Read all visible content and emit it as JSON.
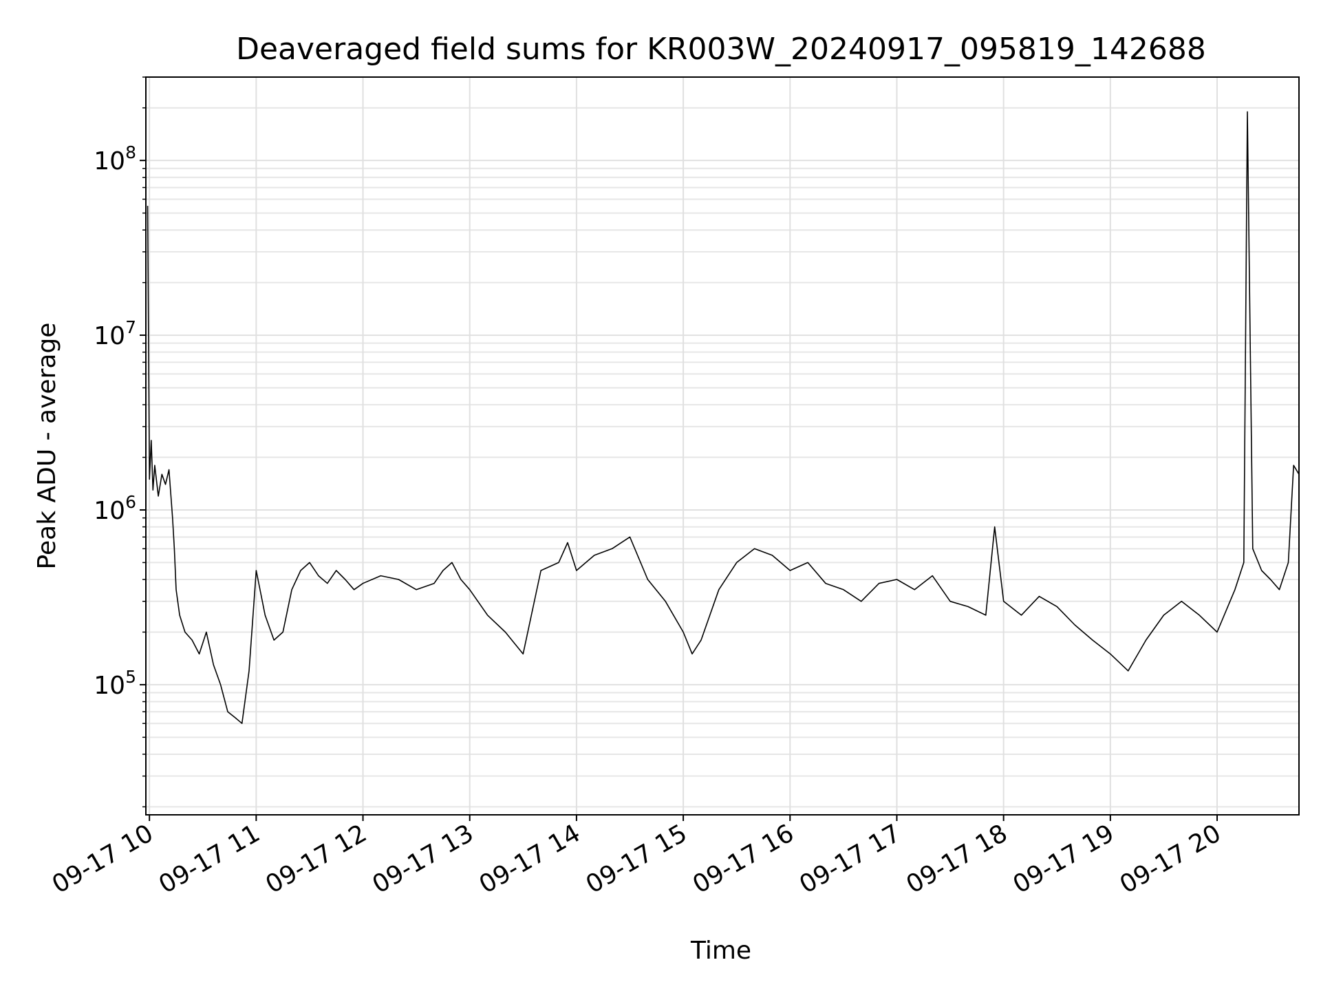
{
  "chart_data": {
    "type": "line",
    "title": "Deaveraged field sums for KR003W_20240917_095819_142688",
    "xlabel": "Time",
    "ylabel": "Peak ADU - average",
    "yscale": "log",
    "xlim": [
      "2024-09-17 09:58",
      "2024-09-17 20:46"
    ],
    "ylim": [
      18000,
      300000000
    ],
    "grid": true,
    "grid_minor": true,
    "line_color": "#000000",
    "x_ticks": [
      "09-17 10",
      "09-17 11",
      "09-17 12",
      "09-17 13",
      "09-17 14",
      "09-17 15",
      "09-17 16",
      "09-17 17",
      "09-17 18",
      "09-17 19",
      "09-17 20"
    ],
    "y_ticks": [
      {
        "value": 100000,
        "base": "10",
        "exp": "5"
      },
      {
        "value": 1000000,
        "base": "10",
        "exp": "6"
      },
      {
        "value": 10000000,
        "base": "10",
        "exp": "7"
      },
      {
        "value": 100000000,
        "base": "10",
        "exp": "8"
      }
    ],
    "series": [
      {
        "x": [
          "2024-09-17 09:59",
          "2024-09-17 10:00",
          "2024-09-17 10:01",
          "2024-09-17 10:02",
          "2024-09-17 10:03",
          "2024-09-17 10:05",
          "2024-09-17 10:07",
          "2024-09-17 10:09",
          "2024-09-17 10:11",
          "2024-09-17 10:13",
          "2024-09-17 10:14",
          "2024-09-17 10:15",
          "2024-09-17 10:17",
          "2024-09-17 10:20",
          "2024-09-17 10:24",
          "2024-09-17 10:28",
          "2024-09-17 10:32",
          "2024-09-17 10:36",
          "2024-09-17 10:40",
          "2024-09-17 10:44",
          "2024-09-17 10:48",
          "2024-09-17 10:52",
          "2024-09-17 10:56",
          "2024-09-17 11:00",
          "2024-09-17 11:05",
          "2024-09-17 11:10",
          "2024-09-17 11:15",
          "2024-09-17 11:20",
          "2024-09-17 11:25",
          "2024-09-17 11:30",
          "2024-09-17 11:35",
          "2024-09-17 11:40",
          "2024-09-17 11:45",
          "2024-09-17 11:50",
          "2024-09-17 11:55",
          "2024-09-17 12:00",
          "2024-09-17 12:10",
          "2024-09-17 12:20",
          "2024-09-17 12:30",
          "2024-09-17 12:40",
          "2024-09-17 12:45",
          "2024-09-17 12:50",
          "2024-09-17 12:55",
          "2024-09-17 13:00",
          "2024-09-17 13:10",
          "2024-09-17 13:20",
          "2024-09-17 13:30",
          "2024-09-17 13:40",
          "2024-09-17 13:50",
          "2024-09-17 13:55",
          "2024-09-17 14:00",
          "2024-09-17 14:10",
          "2024-09-17 14:20",
          "2024-09-17 14:30",
          "2024-09-17 14:40",
          "2024-09-17 14:50",
          "2024-09-17 15:00",
          "2024-09-17 15:05",
          "2024-09-17 15:10",
          "2024-09-17 15:20",
          "2024-09-17 15:30",
          "2024-09-17 15:40",
          "2024-09-17 15:50",
          "2024-09-17 16:00",
          "2024-09-17 16:10",
          "2024-09-17 16:20",
          "2024-09-17 16:30",
          "2024-09-17 16:40",
          "2024-09-17 16:50",
          "2024-09-17 17:00",
          "2024-09-17 17:10",
          "2024-09-17 17:20",
          "2024-09-17 17:30",
          "2024-09-17 17:40",
          "2024-09-17 17:50",
          "2024-09-17 17:55",
          "2024-09-17 18:00",
          "2024-09-17 18:10",
          "2024-09-17 18:20",
          "2024-09-17 18:30",
          "2024-09-17 18:40",
          "2024-09-17 18:50",
          "2024-09-17 19:00",
          "2024-09-17 19:10",
          "2024-09-17 19:20",
          "2024-09-17 19:30",
          "2024-09-17 19:40",
          "2024-09-17 19:50",
          "2024-09-17 20:00",
          "2024-09-17 20:10",
          "2024-09-17 20:15",
          "2024-09-17 20:17",
          "2024-09-17 20:20",
          "2024-09-17 20:25",
          "2024-09-17 20:30",
          "2024-09-17 20:35",
          "2024-09-17 20:40",
          "2024-09-17 20:43",
          "2024-09-17 20:46"
        ],
        "y": [
          55000000,
          1500000,
          2500000,
          1300000,
          1800000,
          1200000,
          1600000,
          1400000,
          1700000,
          900000,
          600000,
          350000,
          250000,
          200000,
          180000,
          150000,
          200000,
          130000,
          100000,
          70000,
          65000,
          60000,
          120000,
          450000,
          250000,
          180000,
          200000,
          350000,
          450000,
          500000,
          420000,
          380000,
          450000,
          400000,
          350000,
          380000,
          420000,
          400000,
          350000,
          380000,
          450000,
          500000,
          400000,
          350000,
          250000,
          200000,
          150000,
          450000,
          500000,
          650000,
          450000,
          550000,
          600000,
          700000,
          400000,
          300000,
          200000,
          150000,
          180000,
          350000,
          500000,
          600000,
          550000,
          450000,
          500000,
          380000,
          350000,
          300000,
          380000,
          400000,
          350000,
          420000,
          300000,
          280000,
          250000,
          800000,
          300000,
          250000,
          320000,
          280000,
          220000,
          180000,
          150000,
          120000,
          180000,
          250000,
          300000,
          250000,
          200000,
          350000,
          500000,
          190000000,
          600000,
          450000,
          400000,
          350000,
          500000,
          1800000,
          1600000
        ]
      }
    ]
  }
}
